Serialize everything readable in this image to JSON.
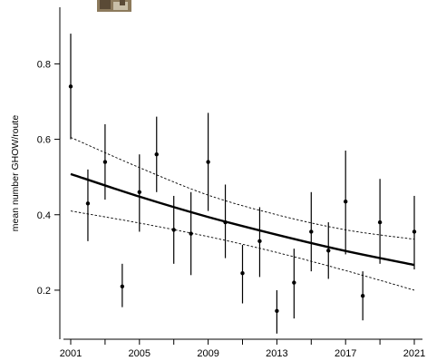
{
  "chart_data": {
    "type": "scatter",
    "title": "",
    "xlabel": "",
    "ylabel": "mean number GHOW/route",
    "xlim": [
      2000.6,
      2021.2
    ],
    "ylim": [
      0.07,
      0.95
    ],
    "xticks": [
      2001,
      2005,
      2009,
      2013,
      2017,
      2021
    ],
    "yticks": [
      0.2,
      0.4,
      0.6,
      0.8
    ],
    "grid": false,
    "legend": "none",
    "series": [
      {
        "kind": "points-with-error-bars",
        "x": [
          2001,
          2002,
          2003,
          2004,
          2005,
          2006,
          2007,
          2008,
          2009,
          2010,
          2011,
          2012,
          2013,
          2014,
          2015,
          2016,
          2017,
          2018,
          2019,
          2021
        ],
        "y": [
          0.74,
          0.43,
          0.54,
          0.21,
          0.46,
          0.56,
          0.36,
          0.35,
          0.54,
          0.38,
          0.245,
          0.33,
          0.145,
          0.22,
          0.355,
          0.305,
          0.435,
          0.185,
          0.38,
          0.355
        ],
        "lower": [
          0.6,
          0.33,
          0.44,
          0.155,
          0.355,
          0.46,
          0.27,
          0.24,
          0.41,
          0.285,
          0.165,
          0.235,
          0.085,
          0.125,
          0.25,
          0.23,
          0.295,
          0.12,
          0.27,
          0.255
        ],
        "upper": [
          0.88,
          0.52,
          0.64,
          0.27,
          0.56,
          0.66,
          0.45,
          0.46,
          0.67,
          0.48,
          0.32,
          0.42,
          0.2,
          0.31,
          0.46,
          0.38,
          0.57,
          0.25,
          0.495,
          0.45
        ]
      },
      {
        "kind": "trend",
        "x": [
          2001,
          2005,
          2009,
          2013,
          2017,
          2021
        ],
        "y": [
          0.508,
          0.448,
          0.394,
          0.347,
          0.304,
          0.267
        ]
      },
      {
        "kind": "trend-lower",
        "x": [
          2001,
          2005,
          2009,
          2013,
          2017,
          2021
        ],
        "y": [
          0.41,
          0.378,
          0.342,
          0.3,
          0.252,
          0.2
        ]
      },
      {
        "kind": "trend-upper",
        "x": [
          2001,
          2005,
          2009,
          2013,
          2017,
          2021
        ],
        "y": [
          0.605,
          0.525,
          0.452,
          0.4,
          0.36,
          0.335
        ]
      }
    ]
  },
  "colors": {
    "ink": "#000000",
    "background": "#ffffff",
    "thumbnail_dark": "#5a4a36",
    "thumbnail_mid": "#8c7a5c",
    "thumbnail_light": "#c9bfa8"
  },
  "icons": {
    "thumbnail": "owl-photo-icon"
  }
}
